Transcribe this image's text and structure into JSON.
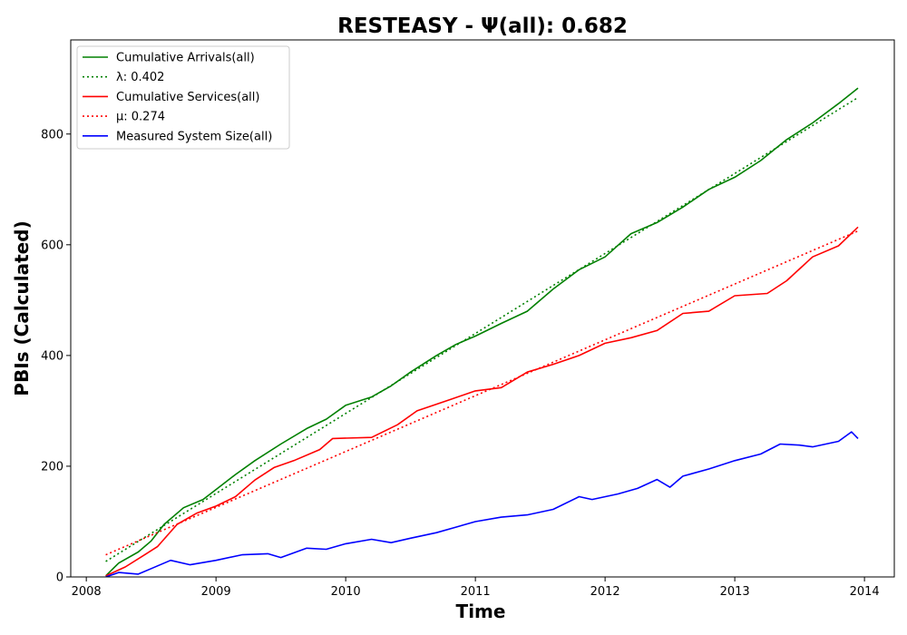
{
  "chart_data": {
    "type": "line",
    "title": "RESTEASY -  Ψ(all): 0.682",
    "xlabel": "Time",
    "ylabel": "PBIs (Calculated)",
    "xlim": [
      2007.88,
      2014.23
    ],
    "ylim": [
      0,
      970
    ],
    "xticks": [
      2008,
      2009,
      2010,
      2011,
      2012,
      2013,
      2014
    ],
    "yticks": [
      0,
      200,
      400,
      600,
      800
    ],
    "legend_position": "top-left",
    "series": [
      {
        "name": "Cumulative Arrivals(all)",
        "color": "#008000",
        "style": "solid",
        "x": [
          2008.15,
          2008.25,
          2008.4,
          2008.5,
          2008.6,
          2008.75,
          2008.9,
          2009.0,
          2009.15,
          2009.3,
          2009.5,
          2009.7,
          2009.85,
          2010.0,
          2010.2,
          2010.35,
          2010.5,
          2010.7,
          2010.85,
          2011.0,
          2011.2,
          2011.4,
          2011.6,
          2011.8,
          2012.0,
          2012.2,
          2012.4,
          2012.6,
          2012.8,
          2013.0,
          2013.2,
          2013.4,
          2013.6,
          2013.8,
          2013.95
        ],
        "y": [
          2,
          25,
          45,
          65,
          95,
          125,
          140,
          158,
          185,
          210,
          240,
          268,
          285,
          310,
          325,
          345,
          370,
          400,
          420,
          435,
          458,
          480,
          520,
          555,
          578,
          620,
          640,
          668,
          700,
          722,
          752,
          790,
          820,
          855,
          883
        ]
      },
      {
        "name": "λ: 0.402",
        "color": "#008000",
        "style": "dotted",
        "x": [
          2008.15,
          2013.95
        ],
        "y": [
          28,
          866
        ]
      },
      {
        "name": "Cumulative Services(all)",
        "color": "#ff0000",
        "style": "solid",
        "x": [
          2008.15,
          2008.3,
          2008.45,
          2008.55,
          2008.7,
          2008.85,
          2009.0,
          2009.15,
          2009.3,
          2009.45,
          2009.6,
          2009.8,
          2009.9,
          2010.2,
          2010.4,
          2010.55,
          2010.8,
          2011.0,
          2011.2,
          2011.4,
          2011.6,
          2011.8,
          2012.0,
          2012.2,
          2012.4,
          2012.6,
          2012.8,
          2013.0,
          2013.25,
          2013.4,
          2013.6,
          2013.8,
          2013.95
        ],
        "y": [
          2,
          18,
          40,
          55,
          95,
          115,
          128,
          145,
          175,
          198,
          210,
          230,
          250,
          252,
          275,
          300,
          320,
          336,
          342,
          370,
          384,
          400,
          422,
          432,
          445,
          476,
          480,
          508,
          512,
          535,
          578,
          598,
          632
        ]
      },
      {
        "name": "μ: 0.274",
        "color": "#ff0000",
        "style": "dotted",
        "x": [
          2008.15,
          2013.95
        ],
        "y": [
          40,
          625
        ]
      },
      {
        "name": "Measured System Size(all)",
        "color": "#0000ff",
        "style": "solid",
        "x": [
          2008.15,
          2008.25,
          2008.4,
          2008.5,
          2008.65,
          2008.8,
          2009.0,
          2009.2,
          2009.4,
          2009.5,
          2009.7,
          2009.85,
          2010.0,
          2010.2,
          2010.35,
          2010.5,
          2010.7,
          2010.85,
          2011.0,
          2011.2,
          2011.4,
          2011.6,
          2011.8,
          2011.9,
          2012.1,
          2012.25,
          2012.4,
          2012.5,
          2012.6,
          2012.8,
          2013.0,
          2013.2,
          2013.35,
          2013.5,
          2013.6,
          2013.8,
          2013.9,
          2013.95
        ],
        "y": [
          0,
          8,
          5,
          15,
          30,
          22,
          30,
          40,
          42,
          35,
          52,
          50,
          60,
          68,
          62,
          70,
          80,
          90,
          100,
          108,
          112,
          122,
          145,
          140,
          150,
          160,
          176,
          162,
          182,
          195,
          210,
          222,
          240,
          238,
          235,
          245,
          262,
          250
        ]
      }
    ]
  }
}
